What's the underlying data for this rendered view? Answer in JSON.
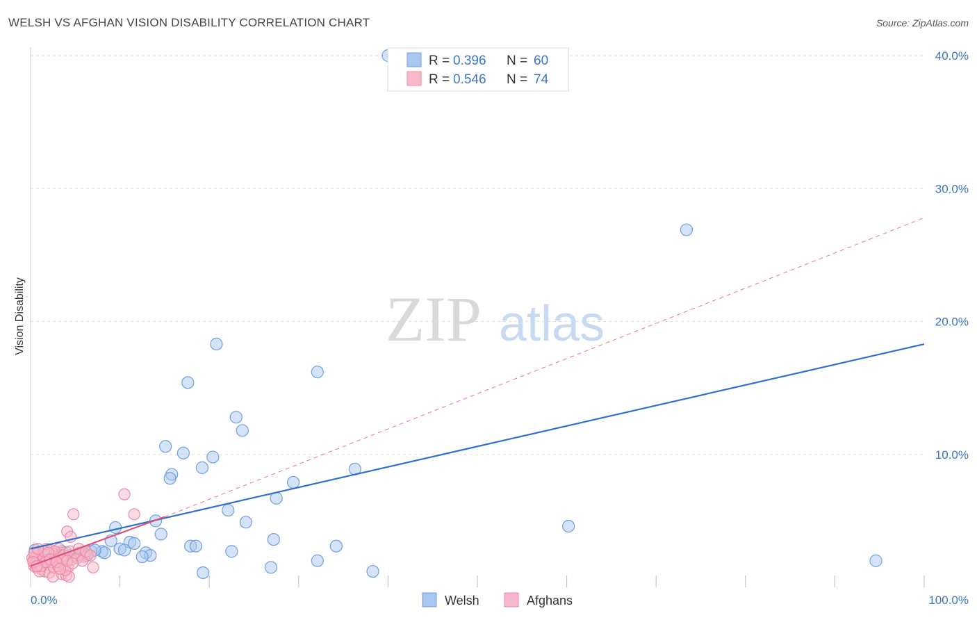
{
  "chart_data": {
    "type": "scatter",
    "title": "WELSH VS AFGHAN VISION DISABILITY CORRELATION CHART",
    "source": "Source: ZipAtlas.com",
    "ylabel": "Vision Disability",
    "xlabel": "",
    "xlim": [
      0,
      100
    ],
    "ylim": [
      0,
      40
    ],
    "x_tick_labels": [
      {
        "value": 0,
        "label": "0.0%"
      },
      {
        "value": 100,
        "label": "100.0%"
      }
    ],
    "y_ticks": [
      {
        "value": 10,
        "label": "10.0%"
      },
      {
        "value": 20,
        "label": "20.0%"
      },
      {
        "value": 30,
        "label": "30.0%"
      },
      {
        "value": 40,
        "label": "40.0%"
      }
    ],
    "watermark": {
      "part1": "ZIP",
      "part2": "atlas"
    },
    "legend": {
      "r_label": "R =",
      "n_label": "N =",
      "entries": [
        {
          "series": "Welsh",
          "r": "0.396",
          "n": "60"
        },
        {
          "series": "Afghans",
          "r": "0.546",
          "n": "74"
        }
      ]
    },
    "colors": {
      "welsh_fill": "#a9c8f0",
      "welsh_stroke": "#6f9fe0",
      "welsh_line": "#2f6fd0",
      "afghan_fill": "#f7b8c9",
      "afghan_stroke": "#e98aa6",
      "afghan_line": "#e0507c",
      "grid": "#dddddd"
    },
    "trendlines": [
      {
        "series": "Welsh",
        "style": "solid",
        "x": [
          0,
          100
        ],
        "y": [
          2.9,
          18.3
        ]
      },
      {
        "series": "Afghans",
        "style": "solid",
        "x": [
          0,
          15
        ],
        "y": [
          1.6,
          5.3
        ]
      },
      {
        "series": "Afghans",
        "style": "dashed",
        "x": [
          15,
          100
        ],
        "y": [
          5.3,
          27.8
        ]
      }
    ],
    "series": [
      {
        "name": "Welsh",
        "points": [
          [
            40.0,
            40.0
          ],
          [
            73.4,
            26.9
          ],
          [
            20.8,
            18.3
          ],
          [
            32.1,
            16.2
          ],
          [
            17.6,
            15.4
          ],
          [
            23.0,
            12.8
          ],
          [
            23.7,
            11.8
          ],
          [
            15.1,
            10.6
          ],
          [
            17.1,
            10.1
          ],
          [
            20.4,
            9.8
          ],
          [
            19.2,
            9.0
          ],
          [
            36.3,
            8.9
          ],
          [
            15.8,
            8.5
          ],
          [
            15.6,
            8.2
          ],
          [
            29.4,
            7.9
          ],
          [
            27.5,
            6.7
          ],
          [
            22.1,
            5.8
          ],
          [
            60.2,
            4.6
          ],
          [
            24.1,
            4.9
          ],
          [
            14.0,
            5.0
          ],
          [
            9.5,
            4.5
          ],
          [
            14.6,
            4.0
          ],
          [
            27.2,
            3.6
          ],
          [
            9.0,
            3.5
          ],
          [
            11.1,
            3.4
          ],
          [
            11.6,
            3.3
          ],
          [
            17.9,
            3.1
          ],
          [
            18.5,
            3.1
          ],
          [
            34.2,
            3.1
          ],
          [
            10.0,
            2.9
          ],
          [
            10.5,
            2.8
          ],
          [
            22.5,
            2.7
          ],
          [
            8.0,
            2.7
          ],
          [
            8.3,
            2.6
          ],
          [
            6.8,
            2.7
          ],
          [
            12.9,
            2.6
          ],
          [
            13.4,
            2.4
          ],
          [
            12.5,
            2.3
          ],
          [
            6.3,
            2.4
          ],
          [
            5.2,
            2.4
          ],
          [
            4.5,
            2.3
          ],
          [
            5.9,
            2.6
          ],
          [
            3.5,
            2.7
          ],
          [
            3.1,
            2.4
          ],
          [
            2.5,
            2.2
          ],
          [
            1.8,
            2.3
          ],
          [
            1.0,
            2.0
          ],
          [
            0.5,
            2.8
          ],
          [
            1.4,
            2.1
          ],
          [
            2.0,
            2.4
          ],
          [
            4.0,
            2.6
          ],
          [
            7.2,
            2.8
          ],
          [
            2.8,
            2.1
          ],
          [
            0.8,
            2.5
          ],
          [
            32.1,
            2.0
          ],
          [
            94.6,
            2.0
          ],
          [
            26.9,
            1.5
          ],
          [
            19.3,
            1.1
          ],
          [
            38.3,
            1.2
          ],
          [
            1.2,
            1.9
          ]
        ]
      },
      {
        "name": "Afghans",
        "points": [
          [
            10.5,
            7.0
          ],
          [
            11.6,
            5.5
          ],
          [
            4.8,
            5.5
          ],
          [
            4.1,
            4.2
          ],
          [
            4.5,
            3.8
          ],
          [
            3.2,
            2.9
          ],
          [
            3.6,
            2.6
          ],
          [
            2.6,
            2.5
          ],
          [
            2.2,
            2.2
          ],
          [
            1.9,
            2.0
          ],
          [
            1.5,
            1.8
          ],
          [
            1.2,
            2.1
          ],
          [
            1.0,
            1.7
          ],
          [
            0.8,
            1.9
          ],
          [
            0.6,
            2.3
          ],
          [
            0.4,
            1.6
          ],
          [
            0.3,
            2.0
          ],
          [
            0.7,
            2.5
          ],
          [
            1.3,
            2.6
          ],
          [
            1.7,
            2.3
          ],
          [
            2.0,
            1.7
          ],
          [
            2.4,
            1.9
          ],
          [
            2.8,
            2.3
          ],
          [
            3.0,
            2.0
          ],
          [
            3.4,
            1.8
          ],
          [
            3.8,
            1.6
          ],
          [
            4.2,
            1.5
          ],
          [
            4.6,
            2.1
          ],
          [
            5.0,
            2.4
          ],
          [
            5.5,
            2.6
          ],
          [
            6.0,
            2.3
          ],
          [
            6.4,
            2.5
          ],
          [
            1.1,
            1.4
          ],
          [
            1.6,
            1.2
          ],
          [
            2.1,
            1.1
          ],
          [
            2.5,
            0.8
          ],
          [
            3.5,
            1.0
          ],
          [
            4.0,
            0.9
          ],
          [
            4.3,
            0.8
          ],
          [
            3.9,
            1.3
          ],
          [
            7.0,
            1.5
          ],
          [
            2.3,
            2.8
          ],
          [
            1.4,
            2.4
          ],
          [
            0.9,
            2.1
          ],
          [
            0.5,
            1.8
          ],
          [
            1.8,
            2.9
          ],
          [
            2.7,
            2.7
          ],
          [
            3.3,
            2.2
          ],
          [
            3.7,
            2.4
          ],
          [
            4.4,
            2.7
          ],
          [
            5.2,
            2.2
          ],
          [
            5.8,
            2.0
          ],
          [
            0.2,
            2.2
          ],
          [
            0.6,
            1.5
          ],
          [
            1.0,
            1.2
          ],
          [
            1.5,
            2.7
          ],
          [
            2.0,
            2.6
          ],
          [
            2.6,
            1.5
          ],
          [
            3.1,
            1.6
          ],
          [
            3.6,
            2.1
          ],
          [
            4.1,
            2.0
          ],
          [
            0.4,
            2.6
          ],
          [
            0.8,
            2.9
          ],
          [
            1.2,
            1.6
          ],
          [
            1.7,
            1.9
          ],
          [
            2.2,
            2.1
          ],
          [
            2.9,
            1.9
          ],
          [
            3.3,
            1.4
          ],
          [
            4.7,
            1.8
          ],
          [
            5.4,
            2.9
          ],
          [
            6.2,
            2.7
          ],
          [
            6.7,
            2.4
          ],
          [
            0.3,
            1.9
          ],
          [
            0.7,
            1.6
          ]
        ]
      }
    ]
  }
}
